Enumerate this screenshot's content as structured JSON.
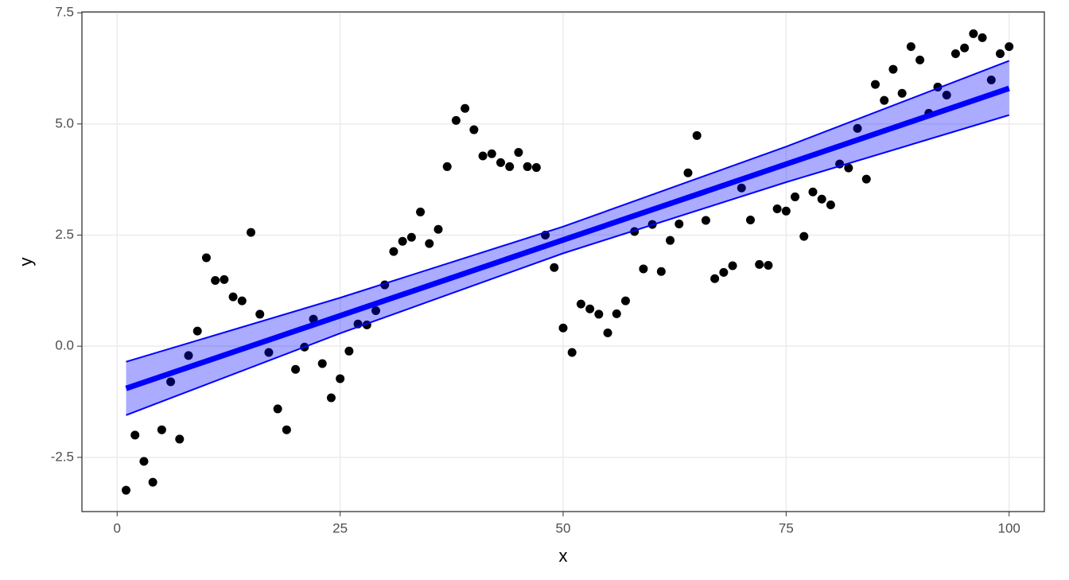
{
  "chart_data": {
    "type": "scatter",
    "x_label": "x",
    "y_label": "y",
    "x": [
      1,
      2,
      3,
      4,
      5,
      6,
      7,
      8,
      9,
      10,
      11,
      12,
      13,
      14,
      15,
      16,
      17,
      18,
      19,
      20,
      21,
      22,
      23,
      24,
      25,
      26,
      27,
      28,
      29,
      30,
      31,
      32,
      33,
      34,
      35,
      36,
      37,
      38,
      39,
      40,
      41,
      42,
      43,
      44,
      45,
      46,
      47,
      48,
      49,
      50,
      51,
      52,
      53,
      54,
      55,
      56,
      57,
      58,
      59,
      60,
      61,
      62,
      63,
      64,
      65,
      66,
      67,
      68,
      69,
      70,
      71,
      72,
      73,
      74,
      75,
      76,
      77,
      78,
      79,
      80,
      81,
      82,
      83,
      84,
      85,
      86,
      87,
      88,
      89,
      90,
      91,
      92,
      93,
      94,
      95,
      96,
      97,
      98,
      99,
      100
    ],
    "values": [
      -3.24,
      -2.0,
      -2.59,
      -3.06,
      -1.88,
      -0.8,
      -2.09,
      -0.21,
      0.34,
      1.99,
      1.48,
      1.5,
      1.11,
      1.02,
      2.56,
      0.72,
      -0.14,
      -1.41,
      -1.88,
      -0.52,
      -0.02,
      0.61,
      -0.39,
      -1.16,
      -0.73,
      -0.11,
      0.5,
      0.48,
      0.8,
      1.38,
      2.13,
      2.36,
      2.45,
      3.02,
      2.31,
      2.63,
      4.04,
      5.08,
      5.35,
      4.87,
      4.28,
      4.33,
      4.13,
      4.04,
      4.36,
      4.04,
      4.02,
      2.5,
      1.77,
      0.41,
      -0.14,
      0.95,
      0.84,
      0.72,
      0.3,
      0.73,
      1.02,
      2.58,
      1.74,
      2.74,
      1.68,
      2.38,
      2.75,
      3.9,
      4.74,
      2.83,
      1.52,
      1.66,
      1.81,
      3.56,
      2.84,
      1.84,
      1.82,
      3.09,
      3.04,
      3.36,
      2.47,
      3.47,
      3.31,
      3.18,
      4.1,
      4.01,
      4.9,
      3.76,
      5.89,
      5.53,
      6.23,
      5.69,
      6.74,
      6.44,
      5.24,
      5.83,
      5.65,
      6.58,
      6.71,
      7.03,
      6.94,
      5.99,
      6.58,
      6.74
    ],
    "color": "#000000",
    "fit": {
      "x": [
        1,
        100
      ],
      "values": [
        -0.95,
        5.8
      ],
      "color": "#0000ff"
    },
    "band": {
      "x": [
        1,
        25,
        50,
        75,
        100
      ],
      "lower": [
        -1.55,
        0.29,
        2.09,
        3.69,
        5.2
      ],
      "upper": [
        -0.35,
        1.09,
        2.69,
        4.49,
        6.42
      ],
      "color": "#0000ff"
    },
    "xlim": [
      -3.95,
      103.95
    ],
    "ylim": [
      -3.72,
      7.52
    ],
    "xticks": [
      0,
      25,
      50,
      75,
      100
    ],
    "yticks": [
      -2.5,
      {
        "value": 0,
        "label": "0.0"
      },
      2.5,
      {
        "value": 5,
        "label": "5.0"
      },
      7.5
    ],
    "grid": true
  }
}
